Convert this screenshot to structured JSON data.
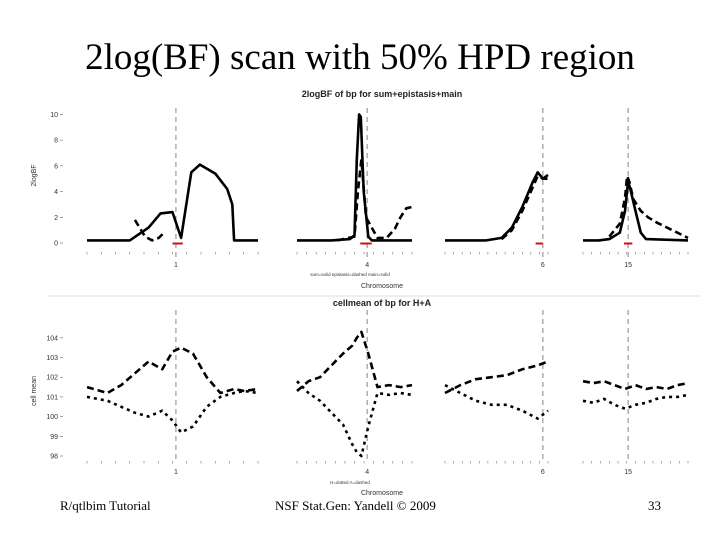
{
  "slide": {
    "title": "2log(BF) scan with 50% HPD region",
    "footer_left": "R/qtlbim Tutorial",
    "footer_center": "NSF Stat.Gen: Yandell © 2009",
    "footer_right": "33"
  },
  "chart_data": [
    {
      "type": "line",
      "title": "2logBF of bp for sum+epistasis+main",
      "ylabel": "2logBF",
      "xlabel": "Chromosome",
      "legend_text": "sum=solid epistasis=dashed main=solid",
      "ylim": [
        0,
        10.5
      ],
      "yticks": [
        0,
        2,
        4,
        6,
        8,
        10
      ],
      "chromosomes": [
        "1",
        "4",
        "6",
        "15"
      ],
      "qtl_lines": [
        0.52,
        0.61,
        0.95,
        0.43
      ],
      "hpd_regions": [
        [
          0.5,
          0.56
        ],
        [
          0.55,
          0.65
        ],
        [
          0.88,
          0.95
        ],
        [
          0.39,
          0.47
        ]
      ],
      "series": [
        {
          "style": "solid",
          "panels": [
            {
              "x": [
                0,
                0.25,
                0.36,
                0.43,
                0.5,
                0.55,
                0.61,
                0.66,
                0.75,
                0.82,
                0.85,
                0.86,
                1.0
              ],
              "y": [
                0.2,
                0.2,
                1.2,
                2.3,
                2.4,
                0.4,
                5.5,
                6.1,
                5.4,
                4.2,
                3.0,
                0.2,
                0.2
              ]
            },
            {
              "x": [
                0,
                0.3,
                0.46,
                0.5,
                0.52,
                0.54,
                0.555,
                0.58,
                0.62,
                0.65,
                0.7,
                1.0
              ],
              "y": [
                0.2,
                0.2,
                0.3,
                0.6,
                6.5,
                10.0,
                9.8,
                4.0,
                0.5,
                0.2,
                0.2,
                0.2
              ]
            },
            {
              "x": [
                0,
                0.4,
                0.55,
                0.65,
                0.75,
                0.85,
                0.9,
                0.95,
                1.0
              ],
              "y": [
                0.2,
                0.2,
                0.4,
                1.2,
                2.8,
                4.7,
                5.5,
                5.0,
                5.3
              ]
            },
            {
              "x": [
                0,
                0.15,
                0.25,
                0.35,
                0.4,
                0.43,
                0.45,
                0.5,
                0.55,
                0.6,
                1.0
              ],
              "y": [
                0.2,
                0.2,
                0.3,
                0.8,
                2.5,
                4.8,
                4.2,
                2.5,
                0.8,
                0.3,
                0.2
              ]
            }
          ]
        },
        {
          "style": "dashed",
          "panels": [
            {
              "x": [
                0.28,
                0.34,
                0.38,
                0.42,
                0.45
              ],
              "y": [
                1.8,
                0.5,
                0.2,
                0.4,
                0.8
              ]
            },
            {
              "x": [
                0.35,
                0.5,
                0.53,
                0.56,
                0.6,
                0.7,
                0.78,
                0.85,
                0.9,
                0.95,
                1.0
              ],
              "y": [
                0.2,
                0.5,
                4.0,
                6.5,
                2.0,
                0.4,
                0.4,
                1.1,
                2.0,
                2.7,
                2.8
              ]
            },
            {
              "x": [
                0.55,
                0.65,
                0.75,
                0.85,
                0.9,
                0.95,
                1.0
              ],
              "y": [
                0.3,
                1.0,
                2.5,
                4.3,
                5.2,
                5.0,
                5.0
              ]
            },
            {
              "x": [
                0.25,
                0.35,
                0.4,
                0.42,
                0.44,
                0.48,
                0.55,
                0.62,
                0.7,
                0.8,
                0.9,
                1.0
              ],
              "y": [
                0.5,
                1.5,
                3.5,
                5.2,
                4.8,
                3.4,
                2.5,
                2.0,
                1.6,
                1.2,
                0.8,
                0.4
              ]
            }
          ]
        }
      ]
    },
    {
      "type": "line",
      "title": "cellmean of bp for H+A",
      "ylabel": "cell mean",
      "xlabel": "Chromosome",
      "legend_text": "H=dotted A=dashed",
      "ylim": [
        98,
        104.6
      ],
      "yticks": [
        98,
        99,
        100,
        101,
        102,
        103,
        104
      ],
      "chromosomes": [
        "1",
        "4",
        "6",
        "15"
      ],
      "qtl_lines": [
        0.52,
        0.61,
        0.95,
        0.43
      ],
      "series": [
        {
          "style": "dashed",
          "panels": [
            {
              "x": [
                0,
                0.12,
                0.2,
                0.28,
                0.36,
                0.44,
                0.5,
                0.55,
                0.62,
                0.7,
                0.78,
                0.86,
                0.92,
                1.0
              ],
              "y": [
                101.5,
                101.2,
                101.6,
                102.2,
                102.8,
                102.4,
                103.3,
                103.5,
                103.2,
                102.0,
                101.2,
                101.4,
                101.3,
                101.4
              ]
            },
            {
              "x": [
                0,
                0.1,
                0.2,
                0.3,
                0.4,
                0.48,
                0.52,
                0.56,
                0.62,
                0.7,
                0.8,
                0.9,
                1.0
              ],
              "y": [
                101.3,
                101.8,
                102.0,
                102.6,
                103.2,
                103.6,
                104.0,
                104.3,
                103.2,
                101.5,
                101.6,
                101.5,
                101.6
              ]
            },
            {
              "x": [
                0,
                0.15,
                0.3,
                0.45,
                0.6,
                0.75,
                0.9,
                1.0
              ],
              "y": [
                101.2,
                101.6,
                101.9,
                102.0,
                102.1,
                102.4,
                102.6,
                102.8
              ]
            },
            {
              "x": [
                0,
                0.1,
                0.2,
                0.3,
                0.4,
                0.5,
                0.6,
                0.7,
                0.8,
                0.9,
                1.0
              ],
              "y": [
                101.8,
                101.7,
                101.8,
                101.6,
                101.4,
                101.6,
                101.4,
                101.5,
                101.4,
                101.6,
                101.7
              ]
            }
          ]
        },
        {
          "style": "dotted",
          "panels": [
            {
              "x": [
                0,
                0.12,
                0.2,
                0.28,
                0.36,
                0.44,
                0.5,
                0.55,
                0.62,
                0.7,
                0.78,
                0.86,
                0.92,
                1.0
              ],
              "y": [
                101.0,
                100.8,
                100.5,
                100.2,
                100.0,
                100.3,
                99.8,
                99.2,
                99.5,
                100.5,
                101.0,
                101.2,
                101.3,
                101.2
              ]
            },
            {
              "x": [
                0,
                0.1,
                0.2,
                0.3,
                0.4,
                0.48,
                0.52,
                0.56,
                0.62,
                0.7,
                0.8,
                0.9,
                1.0
              ],
              "y": [
                101.8,
                101.2,
                100.8,
                100.2,
                99.6,
                98.6,
                98.2,
                98.0,
                99.5,
                101.2,
                101.1,
                101.2,
                101.1
              ]
            },
            {
              "x": [
                0,
                0.15,
                0.3,
                0.45,
                0.6,
                0.75,
                0.9,
                1.0
              ],
              "y": [
                101.6,
                101.2,
                100.8,
                100.6,
                100.6,
                100.3,
                99.9,
                100.3
              ]
            },
            {
              "x": [
                0,
                0.1,
                0.2,
                0.3,
                0.4,
                0.5,
                0.6,
                0.7,
                0.8,
                0.9,
                1.0
              ],
              "y": [
                100.8,
                100.7,
                100.9,
                100.6,
                100.4,
                100.6,
                100.7,
                100.9,
                101.0,
                101.0,
                101.1
              ]
            }
          ]
        }
      ]
    }
  ]
}
